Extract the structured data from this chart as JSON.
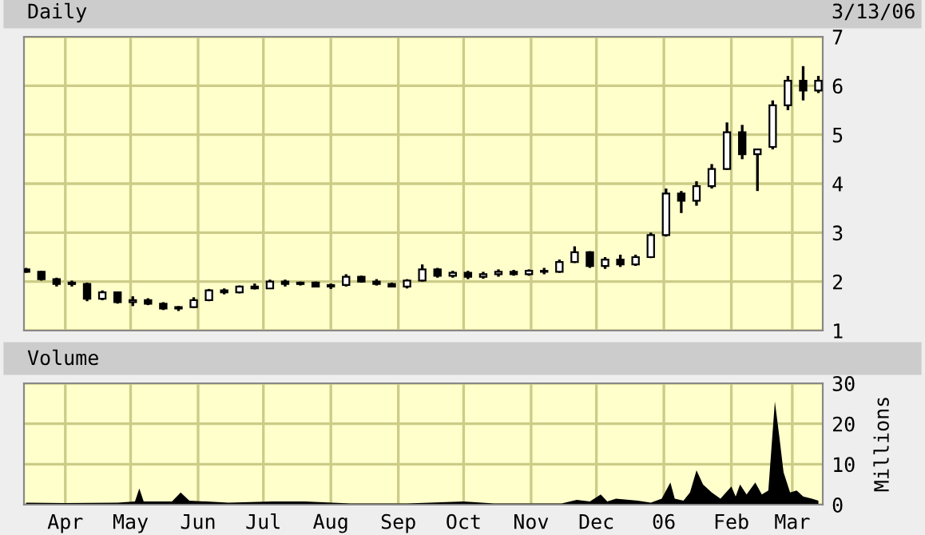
{
  "chart_data": [
    {
      "type": "candlestick",
      "title": "Daily",
      "annotations": [
        "3/13/06"
      ],
      "color": "#000000",
      "grid": true,
      "tick_labels": "y",
      "xlim": [
        "2005-03-13",
        "2006-03-15"
      ],
      "ylim": [
        1,
        7
      ],
      "yticks": [
        1,
        2,
        3,
        4,
        5,
        6,
        7
      ],
      "xticks": [
        {
          "value": "2005-04-01",
          "label": null
        },
        {
          "value": "2005-05-01",
          "label": null
        },
        {
          "value": "2005-06-01",
          "label": null
        },
        {
          "value": "2005-07-01",
          "label": null
        },
        {
          "value": "2005-08-01",
          "label": null
        },
        {
          "value": "2005-09-01",
          "label": null
        },
        {
          "value": "2005-10-01",
          "label": null
        },
        {
          "value": "2005-11-01",
          "label": null
        },
        {
          "value": "2005-12-01",
          "label": null
        },
        {
          "value": "2006-01-01",
          "label": null
        },
        {
          "value": "2006-02-01",
          "label": null
        },
        {
          "value": "2006-03-01",
          "label": null
        }
      ],
      "x": [
        "2005-03-14",
        "2005-03-21",
        "2005-03-28",
        "2005-04-04",
        "2005-04-11",
        "2005-04-18",
        "2005-04-25",
        "2005-05-02",
        "2005-05-09",
        "2005-05-16",
        "2005-05-23",
        "2005-05-30",
        "2005-06-06",
        "2005-06-13",
        "2005-06-20",
        "2005-06-27",
        "2005-07-04",
        "2005-07-11",
        "2005-07-18",
        "2005-07-25",
        "2005-08-01",
        "2005-08-08",
        "2005-08-15",
        "2005-08-22",
        "2005-08-29",
        "2005-09-05",
        "2005-09-12",
        "2005-09-19",
        "2005-09-26",
        "2005-10-03",
        "2005-10-10",
        "2005-10-17",
        "2005-10-24",
        "2005-10-31",
        "2005-11-07",
        "2005-11-14",
        "2005-11-21",
        "2005-11-28",
        "2005-12-05",
        "2005-12-12",
        "2005-12-19",
        "2005-12-26",
        "2006-01-02",
        "2006-01-09",
        "2006-01-16",
        "2006-01-23",
        "2006-01-30",
        "2006-02-06",
        "2006-02-13",
        "2006-02-20",
        "2006-02-27",
        "2006-03-06",
        "2006-03-13"
      ],
      "ohlc": [
        [
          2.25,
          2.28,
          2.18,
          2.2
        ],
        [
          2.2,
          2.22,
          2.02,
          2.05
        ],
        [
          2.05,
          2.08,
          1.9,
          1.95
        ],
        [
          1.95,
          2.02,
          1.9,
          1.98
        ],
        [
          1.95,
          1.98,
          1.6,
          1.65
        ],
        [
          1.65,
          1.82,
          1.62,
          1.78
        ],
        [
          1.78,
          1.8,
          1.55,
          1.58
        ],
        [
          1.58,
          1.7,
          1.5,
          1.62
        ],
        [
          1.62,
          1.66,
          1.52,
          1.55
        ],
        [
          1.55,
          1.58,
          1.42,
          1.45
        ],
        [
          1.45,
          1.5,
          1.4,
          1.48
        ],
        [
          1.48,
          1.68,
          1.46,
          1.62
        ],
        [
          1.62,
          1.85,
          1.6,
          1.82
        ],
        [
          1.82,
          1.86,
          1.74,
          1.78
        ],
        [
          1.78,
          1.92,
          1.76,
          1.9
        ],
        [
          1.9,
          1.96,
          1.84,
          1.86
        ],
        [
          1.86,
          2.04,
          1.85,
          2.0
        ],
        [
          2.0,
          2.04,
          1.9,
          1.95
        ],
        [
          1.95,
          2.0,
          1.92,
          1.98
        ],
        [
          1.98,
          2.0,
          1.88,
          1.9
        ],
        [
          1.9,
          1.96,
          1.85,
          1.93
        ],
        [
          1.93,
          2.15,
          1.9,
          2.1
        ],
        [
          2.1,
          2.12,
          1.98,
          2.0
        ],
        [
          2.0,
          2.05,
          1.92,
          1.95
        ],
        [
          1.95,
          1.98,
          1.88,
          1.9
        ],
        [
          1.9,
          2.05,
          1.86,
          2.02
        ],
        [
          2.02,
          2.35,
          2.0,
          2.25
        ],
        [
          2.25,
          2.28,
          2.08,
          2.12
        ],
        [
          2.12,
          2.22,
          2.08,
          2.18
        ],
        [
          2.18,
          2.22,
          2.05,
          2.1
        ],
        [
          2.1,
          2.2,
          2.06,
          2.15
        ],
        [
          2.15,
          2.25,
          2.1,
          2.2
        ],
        [
          2.2,
          2.24,
          2.12,
          2.15
        ],
        [
          2.15,
          2.25,
          2.12,
          2.22
        ],
        [
          2.22,
          2.28,
          2.15,
          2.2
        ],
        [
          2.2,
          2.45,
          2.18,
          2.4
        ],
        [
          2.4,
          2.72,
          2.38,
          2.6
        ],
        [
          2.6,
          2.62,
          2.28,
          2.32
        ],
        [
          2.32,
          2.5,
          2.26,
          2.45
        ],
        [
          2.45,
          2.55,
          2.3,
          2.35
        ],
        [
          2.35,
          2.55,
          2.32,
          2.5
        ],
        [
          2.5,
          3.0,
          2.48,
          2.95
        ],
        [
          2.95,
          3.9,
          2.92,
          3.8
        ],
        [
          3.8,
          3.85,
          3.4,
          3.65
        ],
        [
          3.65,
          4.05,
          3.55,
          3.95
        ],
        [
          3.95,
          4.4,
          3.9,
          4.3
        ],
        [
          4.3,
          5.25,
          4.28,
          5.05
        ],
        [
          5.05,
          5.2,
          4.5,
          4.6
        ],
        [
          4.6,
          4.7,
          3.85,
          4.7
        ],
        [
          4.75,
          5.7,
          4.7,
          5.6
        ],
        [
          5.6,
          6.2,
          5.5,
          6.1
        ],
        [
          6.1,
          6.4,
          5.7,
          5.9
        ],
        [
          5.9,
          6.2,
          5.85,
          6.1
        ]
      ]
    },
    {
      "type": "area",
      "title": "Volume",
      "ylabel": "Millions",
      "color": "#000000",
      "grid": true,
      "xlim": [
        "2005-03-13",
        "2006-03-15"
      ],
      "ylim": [
        0,
        30
      ],
      "yticks": [
        0,
        10,
        20,
        30
      ],
      "xticks": [
        {
          "value": "2005-04-01",
          "label": "Apr"
        },
        {
          "value": "2005-05-01",
          "label": "May"
        },
        {
          "value": "2005-06-01",
          "label": "Jun"
        },
        {
          "value": "2005-07-01",
          "label": "Jul"
        },
        {
          "value": "2005-08-01",
          "label": "Aug"
        },
        {
          "value": "2005-09-01",
          "label": "Sep"
        },
        {
          "value": "2005-10-01",
          "label": "Oct"
        },
        {
          "value": "2005-11-01",
          "label": "Nov"
        },
        {
          "value": "2005-12-01",
          "label": "Dec"
        },
        {
          "value": "2006-01-01",
          "label": "06"
        },
        {
          "value": "2006-02-01",
          "label": "Feb"
        },
        {
          "value": "2006-03-01",
          "label": "Mar"
        }
      ],
      "x": [
        "2005-03-14",
        "2005-04-01",
        "2005-04-25",
        "2005-05-03",
        "2005-05-05",
        "2005-05-07",
        "2005-05-20",
        "2005-05-24",
        "2005-05-28",
        "2005-06-15",
        "2005-07-05",
        "2005-07-20",
        "2005-08-10",
        "2005-09-05",
        "2005-10-01",
        "2005-10-15",
        "2005-11-01",
        "2005-11-15",
        "2005-11-22",
        "2005-11-28",
        "2005-12-03",
        "2005-12-06",
        "2005-12-10",
        "2005-12-20",
        "2005-12-26",
        "2005-12-31",
        "2006-01-04",
        "2006-01-06",
        "2006-01-10",
        "2006-01-13",
        "2006-01-16",
        "2006-01-19",
        "2006-01-23",
        "2006-01-27",
        "2006-02-01",
        "2006-02-03",
        "2006-02-05",
        "2006-02-08",
        "2006-02-12",
        "2006-02-15",
        "2006-02-18",
        "2006-02-21",
        "2006-02-23",
        "2006-02-25",
        "2006-02-28",
        "2006-03-03",
        "2006-03-06",
        "2006-03-10",
        "2006-03-13"
      ],
      "values": [
        0.5,
        0.4,
        0.5,
        0.8,
        4,
        0.8,
        0.8,
        3,
        1,
        0.5,
        0.8,
        0.8,
        0.3,
        0.3,
        0.8,
        0.3,
        0.3,
        0.3,
        1.2,
        0.8,
        2.5,
        0.8,
        1.5,
        1,
        0.5,
        1.5,
        5.5,
        1.5,
        1,
        3,
        8.5,
        5,
        3,
        1.5,
        4.5,
        2,
        5,
        2.5,
        5.5,
        2.5,
        3.5,
        25.5,
        17,
        8,
        3,
        3.5,
        2,
        1.5,
        1
      ]
    }
  ]
}
